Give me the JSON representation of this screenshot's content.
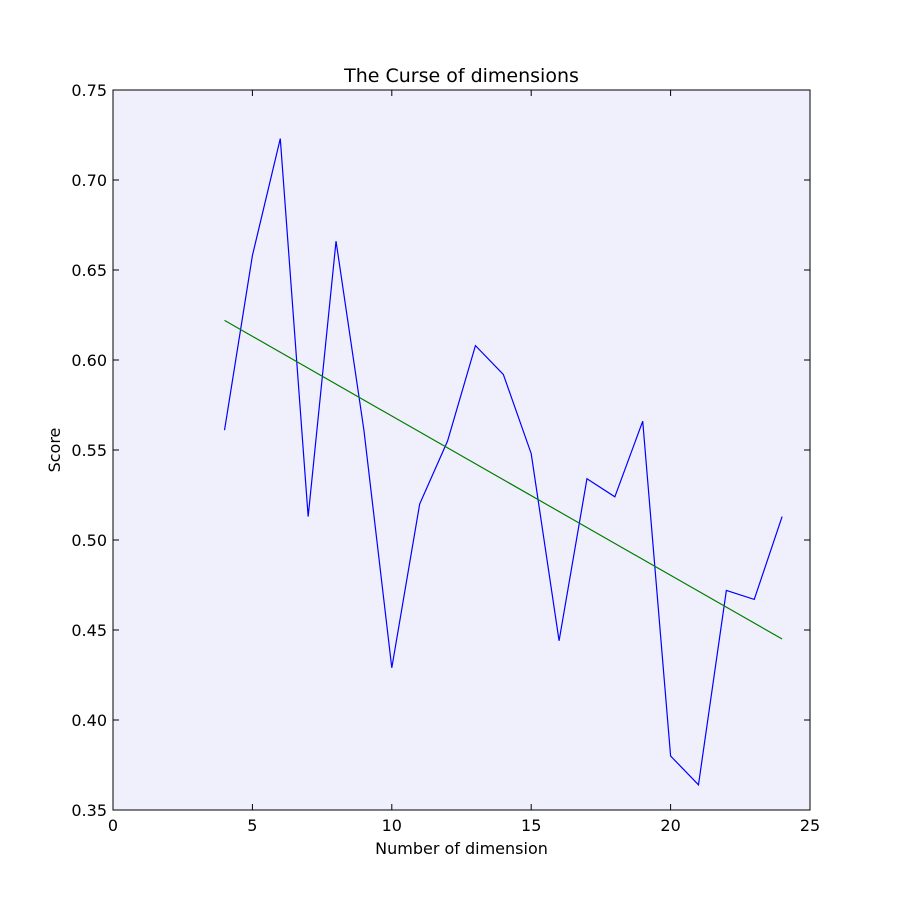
{
  "chart_data": {
    "type": "line",
    "title": "The Curse of dimensions",
    "xlabel": "Number of dimension",
    "ylabel": "Score",
    "xlim": [
      0,
      25
    ],
    "ylim": [
      0.35,
      0.75
    ],
    "xticks": [
      0,
      5,
      10,
      15,
      20,
      25
    ],
    "xtick_labels": [
      "0",
      "5",
      "10",
      "15",
      "20",
      "25"
    ],
    "yticks": [
      0.35,
      0.4,
      0.45,
      0.5,
      0.55,
      0.6,
      0.65,
      0.7,
      0.75
    ],
    "ytick_labels": [
      "0.35",
      "0.40",
      "0.45",
      "0.50",
      "0.55",
      "0.60",
      "0.65",
      "0.70",
      "0.75"
    ],
    "grid": false,
    "legend": "none",
    "background_color": "#f0f0fc",
    "series": [
      {
        "color": "#0000ff",
        "x": [
          4,
          5,
          6,
          7,
          8,
          9,
          10,
          11,
          12,
          13,
          14,
          15,
          16,
          17,
          18,
          19,
          20,
          21,
          22,
          23,
          24
        ],
        "y": [
          0.561,
          0.658,
          0.723,
          0.513,
          0.666,
          0.561,
          0.429,
          0.52,
          0.555,
          0.608,
          0.592,
          0.548,
          0.444,
          0.534,
          0.524,
          0.566,
          0.38,
          0.364,
          0.472,
          0.467,
          0.513
        ]
      },
      {
        "color": "#008000",
        "x": [
          4,
          24
        ],
        "y": [
          0.622,
          0.445
        ]
      }
    ]
  }
}
